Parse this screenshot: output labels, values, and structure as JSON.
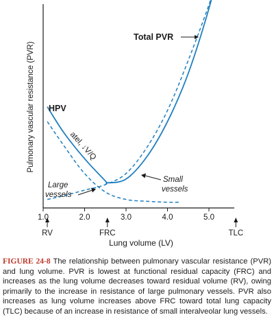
{
  "colors": {
    "curve": "#1f7fbf",
    "axis": "#1a1a1a",
    "figure_label": "#c0392b"
  },
  "chart_data": {
    "type": "line",
    "xlabel": "Lung volume (LV)",
    "ylabel": "Pulmonary vascular resistance (PVR)",
    "xlim": [
      1.0,
      5.8
    ],
    "x_ticks": [
      "1.0",
      "2.0",
      "3.0",
      "4.0",
      "5.0"
    ],
    "volume_markers": [
      {
        "label": "RV",
        "x": 1.1
      },
      {
        "label": "FRC",
        "x": 2.55
      },
      {
        "label": "TLC",
        "x": 5.65
      }
    ],
    "series": [
      {
        "name": "Total PVR",
        "style": "solid",
        "points": [
          [
            1.1,
            0.52
          ],
          [
            1.5,
            0.38
          ],
          [
            2.0,
            0.24
          ],
          [
            2.5,
            0.12
          ],
          [
            2.55,
            0.11
          ],
          [
            3.0,
            0.13
          ],
          [
            3.5,
            0.25
          ],
          [
            4.0,
            0.44
          ],
          [
            4.5,
            0.7
          ],
          [
            5.0,
            1.05
          ],
          [
            5.3,
            1.32
          ]
        ]
      },
      {
        "name": "Small vessels",
        "style": "dashed",
        "points": [
          [
            1.1,
            0.02
          ],
          [
            1.5,
            0.04
          ],
          [
            2.0,
            0.07
          ],
          [
            2.5,
            0.1
          ],
          [
            3.0,
            0.16
          ],
          [
            3.5,
            0.3
          ],
          [
            4.0,
            0.5
          ],
          [
            4.5,
            0.77
          ],
          [
            5.0,
            1.07
          ],
          [
            5.2,
            1.22
          ]
        ]
      },
      {
        "name": "Large vessels",
        "style": "dashed",
        "points": [
          [
            1.1,
            0.44
          ],
          [
            1.5,
            0.31
          ],
          [
            2.0,
            0.16
          ],
          [
            2.5,
            0.06
          ],
          [
            3.0,
            0.02
          ],
          [
            3.5,
            0.01
          ],
          [
            4.0,
            0.005
          ],
          [
            4.3,
            0.005
          ]
        ]
      }
    ],
    "annotations": {
      "total_pvr": "Total PVR",
      "hpv": "HPV",
      "atel": "atel, ↓V/Q",
      "large_vessels_1": "Large",
      "large_vessels_2": "vessels",
      "small_vessels_1": "Small",
      "small_vessels_2": "vessels"
    }
  },
  "caption": {
    "label": "FIGURE 24-8",
    "text": "The relationship between pulmonary vascular resistance (PVR) and lung volume. PVR is lowest at functional residual capacity (FRC) and increases as the lung volume decreases toward residual volume (RV), owing primarily to the increase in resistance of large pulmonary vessels. PVR also increases as lung volume increases above FRC toward total lung capacity (TLC) because of an increase in resistance of small interalveolar lung vessels."
  }
}
